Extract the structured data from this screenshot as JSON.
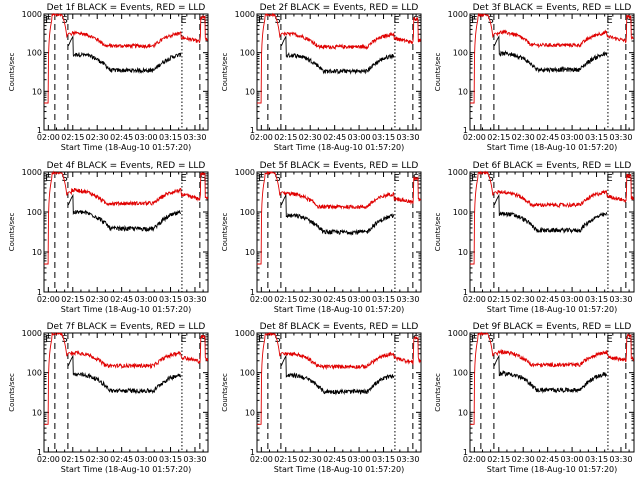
{
  "figure": {
    "colors": {
      "events": "#000000",
      "lld": "#e00000",
      "axis": "#000000"
    }
  },
  "chart_data": [
    {
      "type": "line",
      "title": "Det 1f BLACK = Events, RED = LLD",
      "xlabel": "Start Time (18-Aug-10 01:57:20)",
      "ylabel": "Counts/sec",
      "yscale": "log",
      "ylim": [
        1,
        1000
      ],
      "xlim": [
        "01:57:20",
        "03:38:00"
      ],
      "xticks": [
        "02:00",
        "02:15",
        "02:30",
        "02:45",
        "03:00",
        "03:15",
        "03:30"
      ],
      "yticks": [
        "1",
        "10",
        "100",
        "1000"
      ],
      "markers": [
        {
          "label": "E",
          "time": "02:00"
        },
        {
          "label": "S",
          "time": "02:10"
        },
        {
          "label": "E",
          "time": "03:23"
        },
        {
          "label": "S",
          "time": "03:35"
        }
      ],
      "dashed_lines": [
        "02:04",
        "02:12",
        "03:33"
      ],
      "dotted_lines": [
        "03:22"
      ],
      "series": [
        {
          "name": "Events",
          "values": []
        },
        {
          "name": "LLD",
          "values": []
        }
      ]
    },
    {
      "type": "line",
      "title": "Det 2f BLACK = Events, RED = LLD",
      "xlabel": "Start Time (18-Aug-10 01:57:20)",
      "ylabel": "Counts/sec",
      "yscale": "log",
      "ylim": [
        1,
        1000
      ],
      "xlim": [
        "01:57:20",
        "03:38:00"
      ],
      "xticks": [
        "02:00",
        "02:15",
        "02:30",
        "02:45",
        "03:00",
        "03:15",
        "03:30"
      ],
      "yticks": [
        "1",
        "10",
        "100",
        "1000"
      ],
      "markers": [
        {
          "label": "E",
          "time": "02:00"
        },
        {
          "label": "S",
          "time": "02:10"
        },
        {
          "label": "E",
          "time": "03:23"
        },
        {
          "label": "S",
          "time": "03:35"
        }
      ],
      "dashed_lines": [
        "02:04",
        "02:12",
        "03:33"
      ],
      "dotted_lines": [
        "03:22"
      ],
      "series": [
        {
          "name": "Events",
          "values": []
        },
        {
          "name": "LLD",
          "values": []
        }
      ]
    },
    {
      "type": "line",
      "title": "Det 3f BLACK = Events, RED = LLD",
      "xlabel": "Start Time (18-Aug-10 01:57:20)",
      "ylabel": "Counts/sec",
      "yscale": "log",
      "ylim": [
        1,
        1000
      ],
      "xlim": [
        "01:57:20",
        "03:38:00"
      ],
      "xticks": [
        "02:00",
        "02:15",
        "02:30",
        "02:45",
        "03:00",
        "03:15",
        "03:30"
      ],
      "yticks": [
        "1",
        "10",
        "100",
        "1000"
      ],
      "markers": [
        {
          "label": "E",
          "time": "02:00"
        },
        {
          "label": "S",
          "time": "02:10"
        },
        {
          "label": "E",
          "time": "03:23"
        },
        {
          "label": "S",
          "time": "03:35"
        }
      ],
      "dashed_lines": [
        "02:04",
        "02:12",
        "03:33"
      ],
      "dotted_lines": [
        "03:22"
      ],
      "series": [
        {
          "name": "Events",
          "values": []
        },
        {
          "name": "LLD",
          "values": []
        }
      ]
    },
    {
      "type": "line",
      "title": "Det 4f BLACK = Events, RED = LLD",
      "xlabel": "Start Time (18-Aug-10 01:57:20)",
      "ylabel": "Counts/sec",
      "yscale": "log",
      "ylim": [
        1,
        1000
      ],
      "xlim": [
        "01:57:20",
        "03:38:00"
      ],
      "xticks": [
        "02:00",
        "02:15",
        "02:30",
        "02:45",
        "03:00",
        "03:15",
        "03:30"
      ],
      "yticks": [
        "1",
        "10",
        "100",
        "1000"
      ],
      "markers": [
        {
          "label": "E",
          "time": "02:00"
        },
        {
          "label": "S",
          "time": "02:10"
        },
        {
          "label": "E",
          "time": "03:23"
        },
        {
          "label": "S",
          "time": "03:35"
        }
      ],
      "dashed_lines": [
        "02:04",
        "02:12",
        "03:33"
      ],
      "dotted_lines": [
        "03:22"
      ],
      "series": [
        {
          "name": "Events",
          "values": []
        },
        {
          "name": "LLD",
          "values": []
        }
      ]
    },
    {
      "type": "line",
      "title": "Det 5f BLACK = Events, RED = LLD",
      "xlabel": "Start Time (18-Aug-10 01:57:20)",
      "ylabel": "Counts/sec",
      "yscale": "log",
      "ylim": [
        1,
        1000
      ],
      "xlim": [
        "01:57:20",
        "03:38:00"
      ],
      "xticks": [
        "02:00",
        "02:15",
        "02:30",
        "02:45",
        "03:00",
        "03:15",
        "03:30"
      ],
      "yticks": [
        "1",
        "10",
        "100",
        "1000"
      ],
      "markers": [
        {
          "label": "E",
          "time": "02:00"
        },
        {
          "label": "S",
          "time": "02:10"
        },
        {
          "label": "E",
          "time": "03:23"
        },
        {
          "label": "S",
          "time": "03:35"
        }
      ],
      "dashed_lines": [
        "02:04",
        "02:12",
        "03:33"
      ],
      "dotted_lines": [
        "03:22"
      ],
      "series": [
        {
          "name": "Events",
          "values": []
        },
        {
          "name": "LLD",
          "values": []
        }
      ]
    },
    {
      "type": "line",
      "title": "Det 6f BLACK = Events, RED = LLD",
      "xlabel": "Start Time (18-Aug-10 01:57:20)",
      "ylabel": "Counts/sec",
      "yscale": "log",
      "ylim": [
        1,
        1000
      ],
      "xlim": [
        "01:57:20",
        "03:38:00"
      ],
      "xticks": [
        "02:00",
        "02:15",
        "02:30",
        "02:45",
        "03:00",
        "03:15",
        "03:30"
      ],
      "yticks": [
        "1",
        "10",
        "100",
        "1000"
      ],
      "markers": [
        {
          "label": "E",
          "time": "02:00"
        },
        {
          "label": "S",
          "time": "02:10"
        },
        {
          "label": "E",
          "time": "03:23"
        },
        {
          "label": "S",
          "time": "03:35"
        }
      ],
      "dashed_lines": [
        "02:04",
        "02:12",
        "03:33"
      ],
      "dotted_lines": [
        "03:22"
      ],
      "series": [
        {
          "name": "Events",
          "values": []
        },
        {
          "name": "LLD",
          "values": []
        }
      ]
    },
    {
      "type": "line",
      "title": "Det 7f BLACK = Events, RED = LLD",
      "xlabel": "Start Time (18-Aug-10 01:57:20)",
      "ylabel": "Counts/sec",
      "yscale": "log",
      "ylim": [
        1,
        1000
      ],
      "xlim": [
        "01:57:20",
        "03:38:00"
      ],
      "xticks": [
        "02:00",
        "02:15",
        "02:30",
        "02:45",
        "03:00",
        "03:15",
        "03:30"
      ],
      "yticks": [
        "1",
        "10",
        "100",
        "1000"
      ],
      "markers": [
        {
          "label": "E",
          "time": "02:00"
        },
        {
          "label": "S",
          "time": "02:10"
        },
        {
          "label": "E",
          "time": "03:23"
        },
        {
          "label": "S",
          "time": "03:35"
        }
      ],
      "dashed_lines": [
        "02:04",
        "02:12",
        "03:33"
      ],
      "dotted_lines": [
        "03:22"
      ],
      "series": [
        {
          "name": "Events",
          "values": []
        },
        {
          "name": "LLD",
          "values": []
        }
      ]
    },
    {
      "type": "line",
      "title": "Det 8f BLACK = Events, RED = LLD",
      "xlabel": "Start Time (18-Aug-10 01:57:20)",
      "ylabel": "Counts/sec",
      "yscale": "log",
      "ylim": [
        1,
        1000
      ],
      "xlim": [
        "01:57:20",
        "03:38:00"
      ],
      "xticks": [
        "02:00",
        "02:15",
        "02:30",
        "02:45",
        "03:00",
        "03:15",
        "03:30"
      ],
      "yticks": [
        "1",
        "10",
        "100",
        "1000"
      ],
      "markers": [
        {
          "label": "E",
          "time": "02:00"
        },
        {
          "label": "S",
          "time": "02:10"
        },
        {
          "label": "E",
          "time": "03:23"
        },
        {
          "label": "S",
          "time": "03:35"
        }
      ],
      "dashed_lines": [
        "02:04",
        "02:12",
        "03:33"
      ],
      "dotted_lines": [
        "03:22"
      ],
      "series": [
        {
          "name": "Events",
          "values": []
        },
        {
          "name": "LLD",
          "values": []
        }
      ]
    },
    {
      "type": "line",
      "title": "Det 9f BLACK = Events, RED = LLD",
      "xlabel": "Start Time (18-Aug-10 01:57:20)",
      "ylabel": "Counts/sec",
      "yscale": "log",
      "ylim": [
        1,
        1000
      ],
      "xlim": [
        "01:57:20",
        "03:38:00"
      ],
      "xticks": [
        "02:00",
        "02:15",
        "02:30",
        "02:45",
        "03:00",
        "03:15",
        "03:30"
      ],
      "yticks": [
        "1",
        "10",
        "100",
        "1000"
      ],
      "markers": [
        {
          "label": "E",
          "time": "02:00"
        },
        {
          "label": "S",
          "time": "02:10"
        },
        {
          "label": "E",
          "time": "03:23"
        },
        {
          "label": "S",
          "time": "03:35"
        }
      ],
      "dashed_lines": [
        "02:04",
        "02:12",
        "03:33"
      ],
      "dotted_lines": [
        "03:22"
      ],
      "series": [
        {
          "name": "Events",
          "values": []
        },
        {
          "name": "LLD",
          "values": []
        }
      ]
    }
  ]
}
